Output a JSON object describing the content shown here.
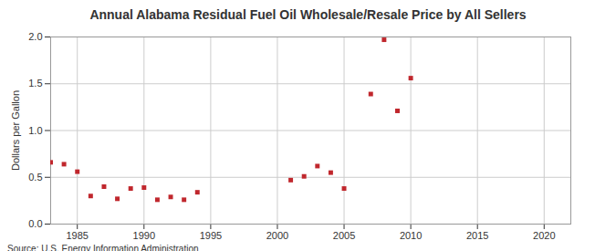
{
  "chart_data": {
    "type": "scatter",
    "title": "Annual Alabama Residual Fuel Oil Wholesale/Resale Price by All Sellers",
    "y_label": "Dollars per Gallon",
    "source": "Source: U.S. Energy Information Administration",
    "x": [
      1983,
      1984,
      1985,
      1986,
      1987,
      1988,
      1989,
      1990,
      1991,
      1992,
      1993,
      1994,
      2001,
      2002,
      2003,
      2004,
      2005,
      2007,
      2008,
      2009,
      2010
    ],
    "values": [
      0.66,
      0.64,
      0.56,
      0.3,
      0.4,
      0.27,
      0.38,
      0.39,
      0.26,
      0.29,
      0.26,
      0.34,
      0.47,
      0.51,
      0.62,
      0.55,
      0.38,
      1.39,
      1.97,
      1.21,
      1.56
    ],
    "color": "#c0272d",
    "marker": "square",
    "xlim": [
      1983,
      2022
    ],
    "xticks": [
      1985,
      1990,
      1995,
      2000,
      2005,
      2010,
      2015,
      2020
    ],
    "ylim": [
      0,
      2
    ],
    "yticks": [
      {
        "value": 0,
        "label": "0.0"
      },
      {
        "value": 0.5,
        "label": "0.5"
      },
      {
        "value": 1,
        "label": "1.0"
      },
      {
        "value": 1.5,
        "label": "1.5"
      },
      {
        "value": 2,
        "label": "2.0"
      }
    ],
    "grid": true
  }
}
